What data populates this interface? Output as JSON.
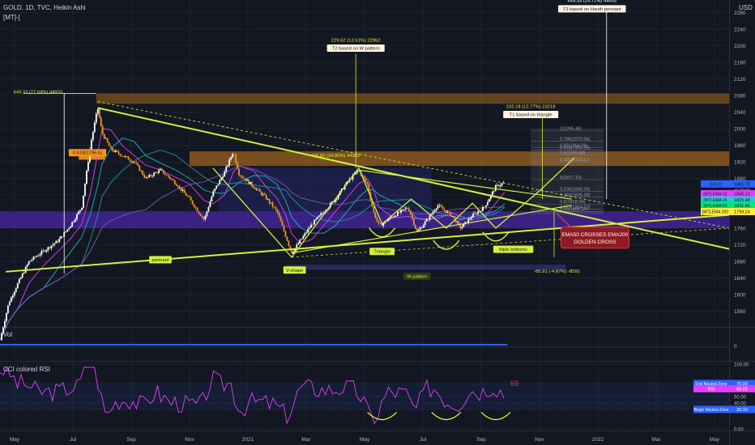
{
  "header": {
    "symbol_line": "GOLD, 1D, TVC, Heikin Ashi",
    "indicator_tag": "[MT]-[",
    "currency": "USD"
  },
  "panes": {
    "volume_label": "Vol",
    "rsi_label": "CCI colored RSI"
  },
  "colors": {
    "background": "#131722",
    "up_candle": "#ffffff",
    "down_candle": "#f7931a",
    "trendline": "#d4f03c",
    "zone_orange": "#f7931a",
    "zone_purple": "#5b2bd6",
    "ema_green": "#26a69a",
    "golden_cross_box": "#8e1b22"
  },
  "chart_data": {
    "type": "candlestick",
    "y_axis": {
      "ticks": [
        1560,
        1600,
        1640,
        1680,
        1720,
        1760,
        1800,
        1840,
        1880,
        1920,
        1960,
        2000,
        2040,
        2080,
        2120,
        2160,
        2200,
        2240,
        2280
      ],
      "range": [
        1522,
        2310
      ]
    },
    "x_axis": {
      "ticks": [
        "May",
        "Jul",
        "Sep",
        "Nov",
        "2021",
        "Mar",
        "May",
        "Jul",
        "Sep",
        "Nov",
        "2022",
        "Mar",
        "May"
      ],
      "range_months": [
        0,
        25
      ]
    },
    "price_path": [
      [
        0,
        1490
      ],
      [
        0.3,
        1580
      ],
      [
        0.6,
        1625
      ],
      [
        1.0,
        1680
      ],
      [
        1.5,
        1705
      ],
      [
        2.0,
        1730
      ],
      [
        2.4,
        1765
      ],
      [
        2.8,
        1810
      ],
      [
        3.1,
        1960
      ],
      [
        3.35,
        2050
      ],
      [
        3.5,
        1990
      ],
      [
        3.8,
        1950
      ],
      [
        4.2,
        1935
      ],
      [
        4.6,
        1920
      ],
      [
        5.0,
        1880
      ],
      [
        5.5,
        1900
      ],
      [
        6.0,
        1870
      ],
      [
        6.5,
        1830
      ],
      [
        7.0,
        1780
      ],
      [
        7.3,
        1845
      ],
      [
        7.7,
        1895
      ],
      [
        8.0,
        1945
      ],
      [
        8.2,
        1890
      ],
      [
        8.7,
        1860
      ],
      [
        9.1,
        1835
      ],
      [
        9.5,
        1800
      ],
      [
        9.8,
        1740
      ],
      [
        10.0,
        1700
      ],
      [
        10.3,
        1730
      ],
      [
        10.7,
        1770
      ],
      [
        11.1,
        1800
      ],
      [
        11.5,
        1830
      ],
      [
        11.9,
        1870
      ],
      [
        12.3,
        1900
      ],
      [
        12.6,
        1865
      ],
      [
        12.8,
        1800
      ],
      [
        13.0,
        1765
      ],
      [
        13.5,
        1790
      ],
      [
        14.0,
        1810
      ],
      [
        14.3,
        1750
      ],
      [
        14.7,
        1785
      ],
      [
        15.0,
        1815
      ],
      [
        15.5,
        1790
      ],
      [
        15.8,
        1760
      ],
      [
        16.2,
        1790
      ],
      [
        16.6,
        1810
      ],
      [
        17.0,
        1860
      ],
      [
        17.3,
        1870
      ]
    ],
    "price_labels": [
      {
        "text": "GOLD",
        "value": 1866.7,
        "price": "1866.70",
        "sub": "15:33:22",
        "color": "#2962ff"
      },
      {
        "text": "[MT]-EMA 12",
        "value": 1843,
        "price": "1846.12",
        "color": "#e040fb"
      },
      {
        "text": "[MT]-EMA 26",
        "value": 1828,
        "price": "1825.48",
        "color": "#26c6da"
      },
      {
        "text": "[MT]-EMA 50",
        "value": 1815,
        "price": "1811.46",
        "color": "#00e676"
      },
      {
        "text": "[MT]-EMA 200",
        "value": 1800,
        "price": "1799.24",
        "color": "#ffeb3b"
      }
    ],
    "annotations": [
      {
        "text": "449.33 (27.64%) 44933",
        "month": 1.3,
        "value": 2085
      },
      {
        "text": "0.618(1795.6)",
        "month": 3.0,
        "value": 1938,
        "boxed": true,
        "bg": "#f7931a",
        "color": "#131722"
      },
      {
        "text": "pennant",
        "month": 5.5,
        "value": 1680,
        "boxed": true,
        "bg": "#d4f03c",
        "color": "#131722"
      },
      {
        "text": "V-shape",
        "month": 10.1,
        "value": 1655,
        "boxed": true,
        "bg": "#d4f03c",
        "color": "#131722"
      },
      {
        "text": "W-pattern",
        "month": 14.3,
        "value": 1640,
        "boxed": true,
        "bg": "#2a3a1a",
        "color": "#d4f03c"
      },
      {
        "text": "Triangle",
        "month": 13.1,
        "value": 1700,
        "boxed": true,
        "bg": "#d4f03c",
        "color": "#131722"
      },
      {
        "text": "triple bottoms",
        "month": 17.6,
        "value": 1705,
        "boxed": true,
        "bg": "#d4f03c",
        "color": "#131722"
      },
      {
        "text": "229.62 (13.51%) 22962",
        "month": 12.2,
        "value": 2210,
        "color": "#d4f03c"
      },
      {
        "text": "T2 based on W pattern",
        "month": 12.2,
        "value": 2190,
        "boxed": true,
        "bg": "#fff3e0",
        "color": "#131722"
      },
      {
        "text": "232.18 (12.77%) 23218",
        "month": 18.2,
        "value": 2050,
        "color": "#d4f03c"
      },
      {
        "text": "T1 based on triangle",
        "month": 18.2,
        "value": 2030,
        "boxed": true,
        "bg": "#fff3e0",
        "color": "#131722"
      },
      {
        "text": "449.33 (24.71%) 44933",
        "month": 20.3,
        "value": 2305,
        "color": "#ffffff"
      },
      {
        "text": "T3 based on Houth pennant",
        "month": 20.3,
        "value": 2285,
        "boxed": true,
        "bg": "#fff3e0",
        "color": "#131722"
      },
      {
        "text": "-85.91 (-4.87%) -8591",
        "month": 19.1,
        "value": 1653,
        "color": "#d4f03c"
      },
      {
        "text": "449.82 (24.80%) 44982",
        "month": 11.5,
        "value": 1932,
        "color": "#d4f03c"
      }
    ],
    "fib_levels": [
      {
        "label": "1(1995.36)",
        "value": 1995
      },
      {
        "label": "0.786(1970.06)",
        "value": 1970
      },
      {
        "label": "0.65(1954.06)",
        "value": 1954
      },
      {
        "label": "0.618(1950.29)",
        "value": 1948
      },
      {
        "label": "0.5(1936.44)",
        "value": 1936
      },
      {
        "label": "0.382(1920.61)",
        "value": 1920
      },
      {
        "label": "0(1877.19)",
        "value": 1877
      },
      {
        "label": "0.236(1849.25)",
        "value": 1849
      },
      {
        "label": "0.382(1835.39)",
        "value": 1835
      },
      {
        "label": "0.5(1818.04)",
        "value": 1818
      },
      {
        "label": "0.618(1804.23)",
        "value": 1806
      },
      {
        "label": "0.65(1800.57)",
        "value": 1800
      }
    ],
    "golden_cross": {
      "line1": "EMA50 CROSSES EMA200",
      "line2": "GOLDEN CROSS",
      "month": 20.4,
      "value": 1735
    },
    "rsi": {
      "ticks": [
        100,
        70,
        50,
        40,
        30,
        0
      ],
      "labels": [
        {
          "text": "End Neutral Zone",
          "price": "70.00",
          "value": 70,
          "color": "#2962ff"
        },
        {
          "text": "RSI",
          "price": "69.02",
          "value": 62,
          "color": "#e040fb"
        },
        {
          "text": "Begin Neutral Zone",
          "price": "30.00",
          "value": 30,
          "color": "#2962ff"
        }
      ],
      "reading": "69"
    },
    "volume": {
      "ticks": [
        0
      ]
    }
  }
}
